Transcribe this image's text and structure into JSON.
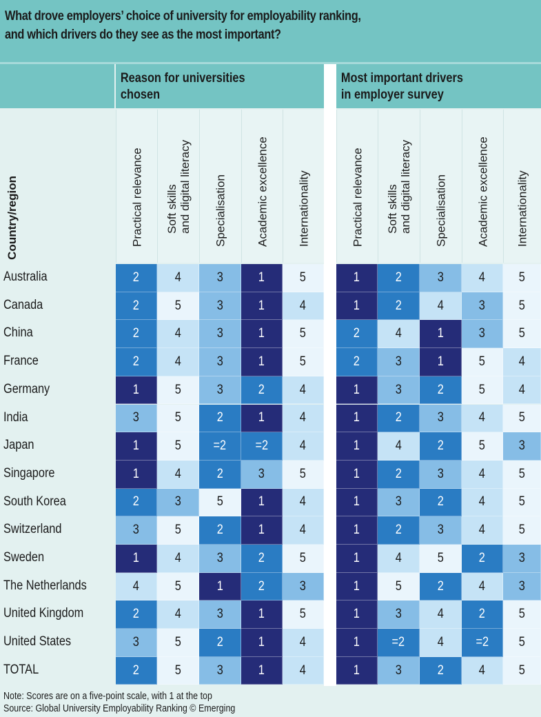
{
  "title": "What drove employers’ choice of university for employability ranking,\nand which drivers do they see as the most important?",
  "groups": [
    "Reason for universities\nchosen",
    "Most important drivers\nin employer survey"
  ],
  "country_header": "Country/region",
  "columns": [
    "Practical relevance",
    "Soft skills\nand digital literacy",
    "Specialisation",
    "Academic excellence",
    "Internationality"
  ],
  "colors": {
    "1": "#252c78",
    "2": "#2a7cc3",
    "3": "#86bde6",
    "4": "#c5e3f6",
    "5": "#eaf5fc",
    "text_dark": "#1a1a1a",
    "text_light": "#ffffff",
    "teal": "#74c4c3"
  },
  "chart_data": {
    "type": "table",
    "title": "What drove employers’ choice of university for employability ranking, and which drivers do they see as the most important?",
    "rows": [
      "Australia",
      "Canada",
      "China",
      "France",
      "Germany",
      "India",
      "Japan",
      "Singapore",
      "South Korea",
      "Switzerland",
      "Sweden",
      "The Netherlands",
      "United Kingdom",
      "United States",
      "TOTAL"
    ],
    "reason_chosen": [
      [
        "2",
        "4",
        "3",
        "1",
        "5"
      ],
      [
        "2",
        "5",
        "3",
        "1",
        "4"
      ],
      [
        "2",
        "4",
        "3",
        "1",
        "5"
      ],
      [
        "2",
        "4",
        "3",
        "1",
        "5"
      ],
      [
        "1",
        "5",
        "3",
        "2",
        "4"
      ],
      [
        "3",
        "5",
        "2",
        "1",
        "4"
      ],
      [
        "1",
        "5",
        "=2",
        "=2",
        "4"
      ],
      [
        "1",
        "4",
        "2",
        "3",
        "5"
      ],
      [
        "2",
        "3",
        "5",
        "1",
        "4"
      ],
      [
        "3",
        "5",
        "2",
        "1",
        "4"
      ],
      [
        "1",
        "4",
        "3",
        "2",
        "5"
      ],
      [
        "4",
        "5",
        "1",
        "2",
        "3"
      ],
      [
        "2",
        "4",
        "3",
        "1",
        "5"
      ],
      [
        "3",
        "5",
        "2",
        "1",
        "4"
      ],
      [
        "2",
        "5",
        "3",
        "1",
        "4"
      ]
    ],
    "employer_survey": [
      [
        "1",
        "2",
        "3",
        "4",
        "5"
      ],
      [
        "1",
        "2",
        "4",
        "3",
        "5"
      ],
      [
        "2",
        "4",
        "1",
        "3",
        "5"
      ],
      [
        "2",
        "3",
        "1",
        "5",
        "4"
      ],
      [
        "1",
        "3",
        "2",
        "5",
        "4"
      ],
      [
        "1",
        "2",
        "3",
        "4",
        "5"
      ],
      [
        "1",
        "4",
        "2",
        "5",
        "3"
      ],
      [
        "1",
        "2",
        "3",
        "4",
        "5"
      ],
      [
        "1",
        "3",
        "2",
        "4",
        "5"
      ],
      [
        "1",
        "2",
        "3",
        "4",
        "5"
      ],
      [
        "1",
        "4",
        "5",
        "2",
        "3"
      ],
      [
        "1",
        "5",
        "2",
        "4",
        "3"
      ],
      [
        "1",
        "3",
        "4",
        "2",
        "5"
      ],
      [
        "1",
        "=2",
        "4",
        "=2",
        "5"
      ],
      [
        "1",
        "3",
        "2",
        "4",
        "5"
      ]
    ]
  },
  "notes": [
    "Note: Scores are on a five-point scale, with 1 at the top",
    "Source: Global University Employability Ranking © Emerging"
  ]
}
